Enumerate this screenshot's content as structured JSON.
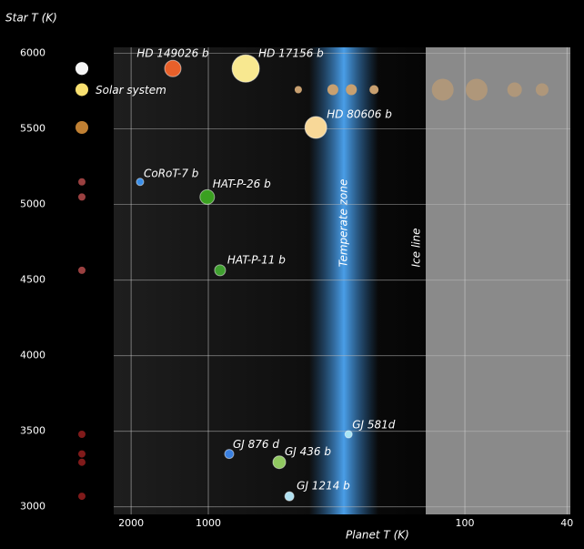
{
  "chart_data": {
    "type": "scatter",
    "y_label": "Star T (K)",
    "x_label": "Planet T (K)",
    "xlim": [
      4140,
      38.8
    ],
    "xlog": true,
    "xticks": [
      2000,
      1000,
      100,
      40
    ],
    "ylim": [
      2950,
      6040
    ],
    "yticks": [
      3000,
      3500,
      4000,
      4500,
      5000,
      5500,
      6000
    ],
    "grid": true,
    "annotations": [
      "Temperate zone",
      "Ice line"
    ],
    "series": [
      {
        "name": "Solar system",
        "color": "#c8a070",
        "x": [
          446,
          327,
          277,
          226,
          122,
          90,
          64,
          50
        ],
        "values": [
          5760,
          5760,
          5760,
          5760,
          5760,
          5760,
          5760,
          5760
        ]
      },
      {
        "labels": [
          "HD 149026 b",
          "HD 17156 b",
          "HD 80606 b",
          "CoRoT-7 b",
          "HAT-P-26 b",
          "HAT-P-11 b",
          "GJ 581d",
          "GJ 876 d",
          "GJ 436 b",
          "GJ 1214 b"
        ],
        "colors": [
          "#e8602a",
          "#f8e890",
          "#f8d898",
          "#3a8ee8",
          "#3aa020",
          "#40a030",
          "#a8e4f4",
          "#3a80e0",
          "#90c860",
          "#b0e0f0"
        ],
        "x": [
          1375,
          715,
          381,
          1845,
          1010,
          900,
          284,
          829,
          529,
          483
        ],
        "values": [
          5900,
          5900,
          5510,
          5150,
          5050,
          4565,
          3480,
          3350,
          3295,
          3070
        ]
      }
    ]
  }
}
